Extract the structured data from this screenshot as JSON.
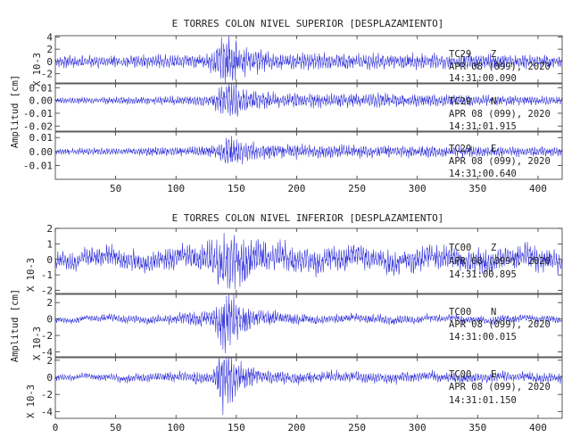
{
  "chart_data": [
    {
      "type": "line",
      "title": "E TORRES COLON NIVEL SUPERIOR [DESPLAZAMIENTO]",
      "ylabel": "Amplitud [cm]",
      "xlim": [
        0,
        420
      ],
      "xticks": [
        "50",
        "100",
        "150",
        "200",
        "250",
        "300",
        "350",
        "400"
      ],
      "line_color": "#2b2bd9",
      "panels": [
        {
          "component": "Z",
          "station": "TC29",
          "date": "APR 08 (099), 2020",
          "time": "14:31:00.090",
          "scale": "X 10-3",
          "ylim": [
            -3.5,
            4.2
          ],
          "yticks": [
            "4",
            "2",
            "0",
            "-2"
          ],
          "envelope": [
            [
              0,
              0.9
            ],
            [
              125,
              1.0
            ],
            [
              130,
              1.6
            ],
            [
              135,
              3.2
            ],
            [
              140,
              4.2
            ],
            [
              145,
              4.0
            ],
            [
              150,
              3.2
            ],
            [
              160,
              2.0
            ],
            [
              180,
              1.3
            ],
            [
              420,
              1.0
            ]
          ],
          "seed": 11
        },
        {
          "component": "N",
          "station": "TC29",
          "date": "APR 08 (099), 2020",
          "time": "14:31:01.915",
          "scale": "",
          "ylim": [
            -0.024,
            0.013
          ],
          "yticks": [
            "0.01",
            "0.00",
            "-0.01",
            "-0.02"
          ],
          "envelope": [
            [
              0,
              0.002
            ],
            [
              100,
              0.003
            ],
            [
              130,
              0.004
            ],
            [
              140,
              0.012
            ],
            [
              145,
              0.017
            ],
            [
              150,
              0.013
            ],
            [
              160,
              0.007
            ],
            [
              200,
              0.005
            ],
            [
              260,
              0.005
            ],
            [
              420,
              0.003
            ]
          ],
          "seed": 23
        },
        {
          "component": "E",
          "station": "TC29",
          "date": "APR 08 (099), 2020",
          "time": "14:31:00.640",
          "scale": "",
          "ylim": [
            -0.02,
            0.014
          ],
          "yticks": [
            "0.01",
            "0.00",
            "-0.01"
          ],
          "envelope": [
            [
              0,
              0.002
            ],
            [
              100,
              0.003
            ],
            [
              135,
              0.004
            ],
            [
              140,
              0.01
            ],
            [
              145,
              0.013
            ],
            [
              150,
              0.008
            ],
            [
              170,
              0.005
            ],
            [
              420,
              0.003
            ]
          ],
          "seed": 37
        }
      ]
    },
    {
      "type": "line",
      "title": "E TORRES COLON NIVEL INFERIOR [DESPLAZAMIENTO]",
      "ylabel": "Amplitud [cm]",
      "xlim": [
        0,
        420
      ],
      "xticks": [
        "0",
        "50",
        "100",
        "150",
        "200",
        "250",
        "300",
        "350",
        "400"
      ],
      "line_color": "#2b2bd9",
      "panels": [
        {
          "component": "Z",
          "station": "TC00",
          "date": "APR 08 (099), 2020",
          "time": "14:31:00.895",
          "scale": "X 10-3",
          "ylim": [
            -2.2,
            2.0
          ],
          "yticks": [
            "2",
            "1",
            "0",
            "-1",
            "-2"
          ],
          "envelope": [
            [
              0,
              0.5
            ],
            [
              120,
              0.7
            ],
            [
              130,
              1.2
            ],
            [
              140,
              2.0
            ],
            [
              150,
              1.9
            ],
            [
              160,
              1.2
            ],
            [
              200,
              0.7
            ],
            [
              420,
              0.7
            ]
          ],
          "drift": 0.35,
          "seed": 51
        },
        {
          "component": "N",
          "station": "TC00",
          "date": "APR 08 (099), 2020",
          "time": "14:31:00.015",
          "scale": "X 10-3",
          "ylim": [
            -4.6,
            3.0
          ],
          "yticks": [
            "2",
            "0",
            "-2",
            "-4"
          ],
          "envelope": [
            [
              0,
              0.3
            ],
            [
              100,
              0.5
            ],
            [
              130,
              1.2
            ],
            [
              140,
              4.0
            ],
            [
              145,
              3.2
            ],
            [
              155,
              1.6
            ],
            [
              170,
              0.8
            ],
            [
              220,
              0.5
            ],
            [
              420,
              0.4
            ]
          ],
          "drift": 0.25,
          "seed": 67
        },
        {
          "component": "E",
          "station": "TC00",
          "date": "APR 08 (099), 2020",
          "time": "14:31:01.150",
          "scale": "X 10-3",
          "ylim": [
            -4.8,
            2.3
          ],
          "yticks": [
            "2",
            "0",
            "-2",
            "-4"
          ],
          "envelope": [
            [
              0,
              0.3
            ],
            [
              100,
              0.5
            ],
            [
              130,
              0.8
            ],
            [
              140,
              4.2
            ],
            [
              145,
              3.0
            ],
            [
              155,
              1.5
            ],
            [
              170,
              0.7
            ],
            [
              420,
              0.5
            ]
          ],
          "drift": 0.2,
          "seed": 79
        }
      ]
    }
  ]
}
